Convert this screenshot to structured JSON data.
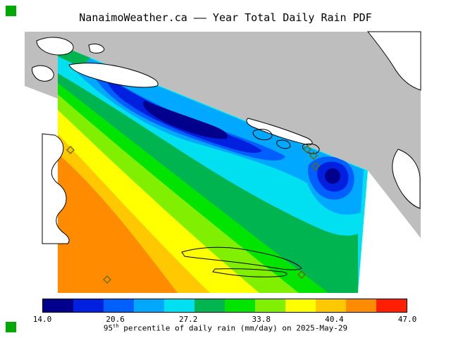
{
  "page": {
    "title": "NanaimoWeather.ca —— Year Total Daily Rain PDF",
    "caption": {
      "base": "95",
      "sup": "th",
      "rest": " percentile of daily rain (mm/day) on 2025-May-29"
    }
  },
  "colorbar": {
    "ticks": [
      "14.0",
      "20.6",
      "27.2",
      "33.8",
      "40.4",
      "47.0"
    ],
    "colors": [
      "#00008c",
      "#0020e0",
      "#0060ff",
      "#00a8ff",
      "#00e0f0",
      "#00b450",
      "#00e400",
      "#80f000",
      "#ffff00",
      "#ffc800",
      "#ff8c00",
      "#ff1e00"
    ]
  },
  "map": {
    "land_color": "#bebebe",
    "island_fill": "#ffffff",
    "coastline_color": "#000000",
    "marker_color": "#6b6b00",
    "corner_square_color": "#00a800"
  },
  "chart_data": {
    "type": "heatmap",
    "title": "NanaimoWeather.ca —— Year Total Daily Rain PDF",
    "subtitle": "95th percentile of daily rain (mm/day) on 2025-May-29",
    "units": "mm/day",
    "scale_min": 14.0,
    "scale_max": 47.0,
    "scale_ticks": [
      14.0,
      20.6,
      27.2,
      33.8,
      40.4,
      47.0
    ],
    "legend_position": "bottom",
    "regions": [
      {
        "area": "upper-central strait along northeast coast",
        "value_range": "14-17",
        "color": "dark navy blue",
        "note": "primary minimum"
      },
      {
        "area": "band surrounding the northern minimum",
        "value_range": "17-24",
        "color": "blue to light blue"
      },
      {
        "area": "pocket near east coast (right of center)",
        "value_range": "14-20",
        "color": "blue with navy core",
        "note": "secondary minimum"
      },
      {
        "area": "central strait diagonal band",
        "value_range": "24-30",
        "color": "cyan"
      },
      {
        "area": "mid-lower strait",
        "value_range": "30-36",
        "color": "green to yellow-green"
      },
      {
        "area": "southwest / lower-left (Vancouver Island side)",
        "value_range": "36-44",
        "color": "yellow to orange",
        "note": "maximum"
      }
    ],
    "markers": {
      "symbol": "diamond",
      "count": 6,
      "meaning": "station locations"
    }
  }
}
